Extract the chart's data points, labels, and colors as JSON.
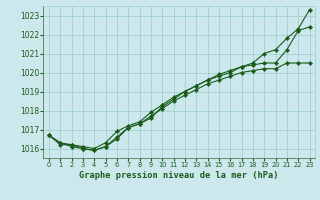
{
  "title": "Graphe pression niveau de la mer (hPa)",
  "bg_color": "#cce8ec",
  "grid_color": "#99cccc",
  "line_color": "#1a5c1a",
  "marker_color": "#1a5c1a",
  "x_values": [
    0,
    1,
    2,
    3,
    4,
    5,
    6,
    7,
    8,
    9,
    10,
    11,
    12,
    13,
    14,
    15,
    16,
    17,
    18,
    19,
    20,
    21,
    22,
    23
  ],
  "series": [
    [
      1016.7,
      1016.3,
      1016.1,
      1016.0,
      1015.9,
      1016.1,
      1016.6,
      1017.1,
      1017.3,
      1017.7,
      1018.1,
      1018.5,
      1018.8,
      1019.1,
      1019.4,
      1019.6,
      1019.8,
      1020.0,
      1020.1,
      1020.2,
      1020.2,
      1020.5,
      1020.5,
      1020.5
    ],
    [
      1016.7,
      1016.3,
      1016.2,
      1016.1,
      1016.0,
      1016.3,
      1016.9,
      1017.2,
      1017.4,
      1017.9,
      1018.3,
      1018.7,
      1019.0,
      1019.3,
      1019.6,
      1019.9,
      1020.1,
      1020.3,
      1020.4,
      1020.5,
      1020.5,
      1021.2,
      1022.2,
      1022.4
    ],
    [
      1016.7,
      1016.2,
      1016.2,
      1016.0,
      1015.9,
      1016.1,
      1016.5,
      1017.1,
      1017.3,
      1017.6,
      1018.2,
      1018.6,
      1019.0,
      1019.3,
      1019.6,
      1019.8,
      1020.0,
      1020.3,
      1020.5,
      1021.0,
      1021.2,
      1021.8,
      1022.3,
      1023.3
    ]
  ],
  "ylim": [
    1015.5,
    1023.5
  ],
  "yticks": [
    1016,
    1017,
    1018,
    1019,
    1020,
    1021,
    1022,
    1023
  ],
  "xlim": [
    -0.5,
    23.5
  ],
  "xticks": [
    0,
    1,
    2,
    3,
    4,
    5,
    6,
    7,
    8,
    9,
    10,
    11,
    12,
    13,
    14,
    15,
    16,
    17,
    18,
    19,
    20,
    21,
    22,
    23
  ]
}
